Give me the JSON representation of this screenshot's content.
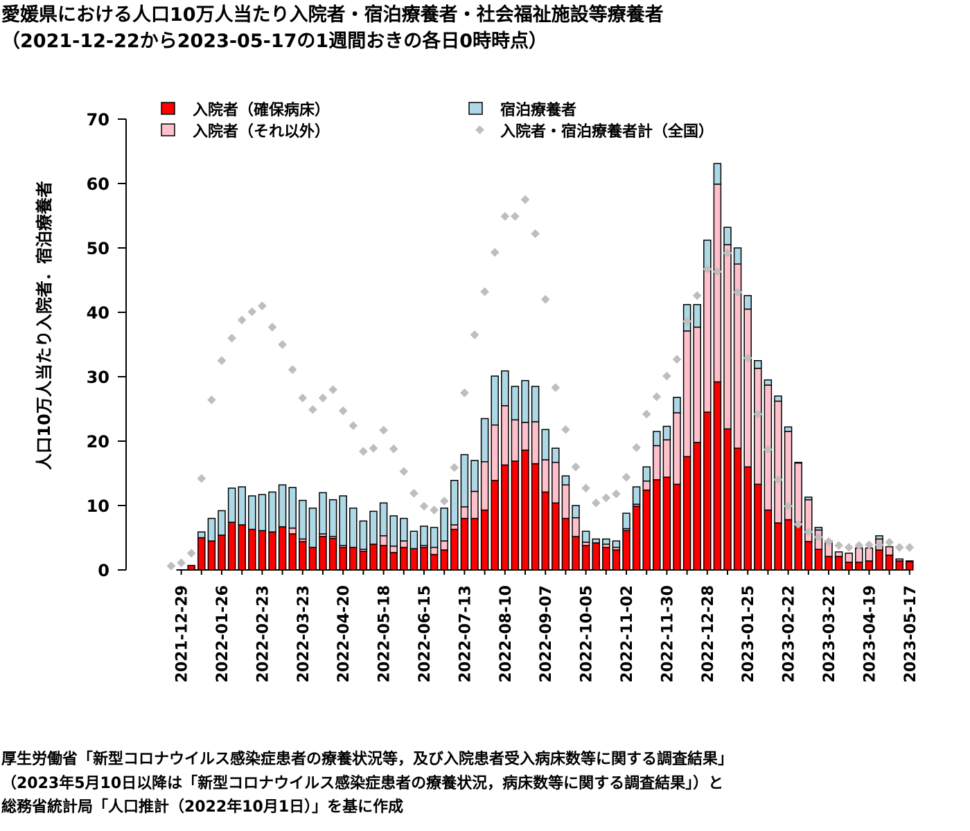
{
  "title": {
    "line1": "愛媛県における人口10万人当たり入院者・宿泊療養者・社会福祉施設等療養者",
    "line2": "（2021-12-22から2023-05-17の1週間おきの各日0時時点）"
  },
  "colors": {
    "secured": "#ff0000",
    "other": "#ffc0cb",
    "hotel": "#add8e6",
    "national": "#bebebe"
  },
  "footnote": {
    "line1": "厚生労働省「新型コロナウイルス感染症患者の療養状況等，及び入院患者受入病床数等に関する調査結果」",
    "line2": "（2023年5月10日以降は「新型コロナウイルス感染症患者の療養状況，病床数等に関する調査結果」）と",
    "line3": "総務省統計局「人口推計（2022年10月1日）」を基に作成"
  },
  "chart_data": {
    "type": "bar",
    "stacked": true,
    "ylabel": "人口10万人当たり入院者．宿泊療養者",
    "xlabel": "",
    "ylim": [
      0,
      70
    ],
    "yticks": [
      "0",
      "10",
      "20",
      "30",
      "40",
      "50",
      "60",
      "70"
    ],
    "legend_position": "top",
    "legend": {
      "secured": "入院者（確保病床）",
      "other": "入院者（それ以外）",
      "hotel": "宿泊療養者",
      "national": "入院者・宿泊療養者計（全国）"
    },
    "tick_labels": [
      "2021-12-29",
      "2022-01-26",
      "2022-02-23",
      "2022-03-23",
      "2022-04-20",
      "2022-05-18",
      "2022-06-15",
      "2022-07-13",
      "2022-08-10",
      "2022-09-07",
      "2022-10-05",
      "2022-11-02",
      "2022-11-30",
      "2022-12-28",
      "2023-01-25",
      "2023-02-22",
      "2023-03-22",
      "2023-04-19",
      "2023-05-17"
    ],
    "x": [
      "2021-12-22",
      "2021-12-29",
      "2022-01-05",
      "2022-01-12",
      "2022-01-19",
      "2022-01-26",
      "2022-02-02",
      "2022-02-09",
      "2022-02-16",
      "2022-02-23",
      "2022-03-02",
      "2022-03-09",
      "2022-03-16",
      "2022-03-23",
      "2022-03-30",
      "2022-04-06",
      "2022-04-13",
      "2022-04-20",
      "2022-04-27",
      "2022-05-04",
      "2022-05-11",
      "2022-05-18",
      "2022-05-25",
      "2022-06-01",
      "2022-06-08",
      "2022-06-15",
      "2022-06-22",
      "2022-06-29",
      "2022-07-06",
      "2022-07-13",
      "2022-07-20",
      "2022-07-27",
      "2022-08-03",
      "2022-08-10",
      "2022-08-17",
      "2022-08-24",
      "2022-08-31",
      "2022-09-07",
      "2022-09-14",
      "2022-09-21",
      "2022-09-28",
      "2022-10-05",
      "2022-10-12",
      "2022-10-19",
      "2022-10-26",
      "2022-11-02",
      "2022-11-09",
      "2022-11-16",
      "2022-11-23",
      "2022-11-30",
      "2022-12-07",
      "2022-12-14",
      "2022-12-21",
      "2022-12-28",
      "2023-01-04",
      "2023-01-11",
      "2023-01-18",
      "2023-01-25",
      "2023-02-01",
      "2023-02-08",
      "2023-02-15",
      "2023-02-22",
      "2023-03-01",
      "2023-03-08",
      "2023-03-15",
      "2023-03-22",
      "2023-03-29",
      "2023-04-05",
      "2023-04-12",
      "2023-04-19",
      "2023-04-26",
      "2023-05-03",
      "2023-05-10",
      "2023-05-17"
    ],
    "series": [
      {
        "name": "入院者（確保病床）",
        "key": "secured",
        "values": [
          0,
          0,
          0.7,
          5.0,
          4.5,
          5.4,
          7.4,
          7.0,
          6.3,
          6.1,
          5.9,
          6.7,
          5.6,
          4.4,
          3.5,
          5.2,
          4.9,
          3.5,
          3.5,
          2.9,
          4.0,
          3.8,
          2.7,
          3.5,
          3.3,
          3.5,
          2.4,
          3.1,
          6.3,
          8.0,
          8.0,
          9.3,
          13.9,
          16.3,
          16.9,
          18.6,
          16.5,
          12.1,
          10.4,
          8.0,
          5.2,
          3.8,
          4.2,
          3.5,
          3.1,
          6.1,
          9.9,
          12.4,
          14.0,
          14.4,
          13.3,
          17.6,
          19.8,
          24.5,
          29.2,
          21.9,
          18.9,
          16.0,
          13.3,
          9.3,
          7.3,
          7.8,
          7.4,
          4.4,
          3.2,
          2.1,
          2.1,
          1.2,
          1.2,
          1.4,
          3.1,
          2.3,
          1.4,
          1.3
        ]
      },
      {
        "name": "入院者（それ以外）",
        "key": "other",
        "values": [
          0,
          0,
          0,
          0,
          0,
          0,
          0,
          0,
          0,
          0,
          0,
          0,
          0.9,
          0.4,
          0,
          0.4,
          0.3,
          0.3,
          0,
          0.3,
          0,
          1.5,
          1.0,
          1.0,
          0,
          0.3,
          1.1,
          1.4,
          0.7,
          1.8,
          4.2,
          7.5,
          8.6,
          9.2,
          6.4,
          4.3,
          6.5,
          5.0,
          6.3,
          5.2,
          2.9,
          0.5,
          0,
          0.5,
          0.4,
          0.3,
          0.3,
          1.4,
          5.3,
          5.8,
          11.1,
          19.5,
          17.9,
          22.0,
          30.7,
          28.6,
          28.6,
          24.5,
          18.0,
          19.4,
          18.9,
          13.7,
          9.2,
          6.5,
          3.0,
          2.4,
          0.7,
          1.4,
          2.2,
          2.0,
          1.7,
          1.3,
          0.3,
          0.1
        ]
      },
      {
        "name": "宿泊療養者",
        "key": "hotel",
        "values": [
          0,
          0,
          0,
          0.9,
          3.5,
          3.8,
          5.3,
          5.9,
          5.2,
          5.6,
          6.2,
          6.5,
          6.3,
          6.0,
          6.1,
          6.4,
          5.7,
          7.7,
          6.1,
          4.4,
          5.1,
          5.1,
          4.7,
          3.5,
          2.7,
          3.0,
          3.1,
          5.1,
          6.9,
          8.1,
          4.8,
          6.7,
          7.6,
          5.4,
          5.2,
          6.5,
          5.5,
          4.7,
          2.2,
          1.4,
          1.9,
          1.7,
          0.6,
          0.8,
          1.0,
          2.4,
          2.7,
          2.2,
          2.2,
          2.1,
          2.4,
          4.1,
          3.5,
          4.7,
          3.2,
          2.7,
          2.5,
          2.1,
          1.2,
          0.8,
          0.8,
          0.7,
          0.1,
          0.4,
          0.4,
          0,
          0,
          0,
          0,
          0,
          0.5,
          0,
          0,
          0
        ]
      },
      {
        "name": "入院者・宿泊療養者計（全国）",
        "key": "national",
        "type": "scatter",
        "values": [
          0.6,
          1.1,
          2.6,
          14.2,
          26.4,
          32.5,
          36.0,
          38.8,
          40.1,
          41.0,
          37.7,
          35.0,
          31.1,
          26.7,
          24.9,
          26.7,
          28.0,
          24.7,
          22.4,
          18.4,
          18.9,
          21.7,
          18.8,
          15.3,
          11.9,
          9.9,
          9.3,
          10.7,
          15.9,
          27.5,
          36.5,
          43.2,
          49.3,
          54.9,
          54.9,
          57.5,
          52.2,
          42.0,
          28.3,
          21.8,
          16.0,
          12.7,
          10.4,
          11.2,
          11.8,
          14.4,
          19.0,
          24.2,
          26.9,
          30.1,
          32.7,
          38.6,
          42.6,
          46.7,
          46.3,
          49.2,
          43.1,
          32.9,
          24.2,
          18.7,
          14.0,
          9.9,
          7.1,
          5.9,
          5.1,
          4.4,
          3.8,
          3.5,
          3.8,
          3.9,
          3.9,
          4.3,
          3.5,
          3.5
        ]
      }
    ]
  }
}
